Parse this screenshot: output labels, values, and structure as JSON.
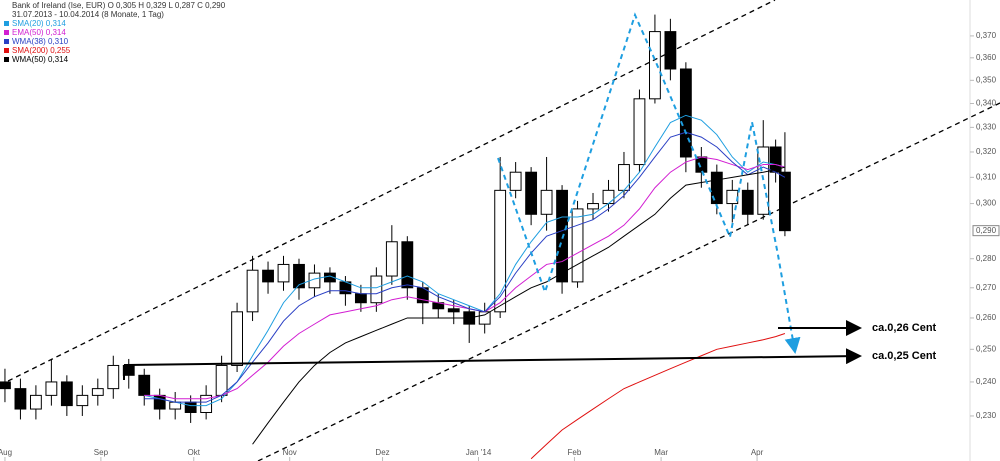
{
  "chart_data": {
    "type": "candlestick",
    "title": "Bank of Ireland (Ise, EUR) O 0,305 H 0,329 L 0,287 C 0,290",
    "subtitle": "31.07.2013 - 10.04.2014 (8 Monate, 1 Tag)",
    "x": [
      1,
      6,
      11,
      16,
      21,
      26,
      31,
      36,
      41,
      46,
      51,
      56,
      61,
      66,
      71,
      76,
      81,
      86,
      91,
      96,
      101,
      106,
      111,
      116,
      121,
      126,
      131,
      136,
      141,
      146,
      151,
      156,
      161,
      166,
      171,
      176,
      181,
      186,
      191,
      196,
      201,
      206,
      211,
      216,
      221,
      226,
      231,
      236,
      241,
      246,
      250,
      253
    ],
    "open": [
      0.24,
      0.238,
      0.232,
      0.236,
      0.24,
      0.233,
      0.236,
      0.238,
      0.245,
      0.242,
      0.236,
      0.232,
      0.234,
      0.231,
      0.236,
      0.245,
      0.262,
      0.276,
      0.272,
      0.278,
      0.27,
      0.275,
      0.272,
      0.268,
      0.265,
      0.274,
      0.286,
      0.27,
      0.265,
      0.263,
      0.262,
      0.258,
      0.262,
      0.305,
      0.312,
      0.296,
      0.305,
      0.272,
      0.298,
      0.3,
      0.305,
      0.315,
      0.342,
      0.372,
      0.355,
      0.318,
      0.312,
      0.3,
      0.305,
      0.296,
      0.322,
      0.312
    ],
    "high": [
      0.244,
      0.241,
      0.239,
      0.247,
      0.242,
      0.239,
      0.241,
      0.248,
      0.247,
      0.244,
      0.238,
      0.237,
      0.236,
      0.239,
      0.248,
      0.265,
      0.281,
      0.279,
      0.281,
      0.28,
      0.278,
      0.277,
      0.274,
      0.271,
      0.277,
      0.292,
      0.288,
      0.272,
      0.268,
      0.266,
      0.264,
      0.265,
      0.318,
      0.316,
      0.314,
      0.318,
      0.307,
      0.301,
      0.304,
      0.309,
      0.32,
      0.346,
      0.38,
      0.378,
      0.358,
      0.322,
      0.315,
      0.309,
      0.308,
      0.333,
      0.325,
      0.328
    ],
    "low": [
      0.234,
      0.229,
      0.229,
      0.233,
      0.23,
      0.23,
      0.233,
      0.235,
      0.238,
      0.233,
      0.229,
      0.229,
      0.228,
      0.229,
      0.234,
      0.243,
      0.259,
      0.268,
      0.269,
      0.266,
      0.267,
      0.268,
      0.264,
      0.262,
      0.262,
      0.271,
      0.266,
      0.258,
      0.26,
      0.258,
      0.252,
      0.255,
      0.26,
      0.302,
      0.292,
      0.29,
      0.268,
      0.27,
      0.294,
      0.297,
      0.302,
      0.312,
      0.34,
      0.35,
      0.312,
      0.306,
      0.296,
      0.293,
      0.292,
      0.294,
      0.308,
      0.288
    ],
    "close": [
      0.238,
      0.232,
      0.236,
      0.24,
      0.233,
      0.236,
      0.238,
      0.245,
      0.242,
      0.236,
      0.232,
      0.234,
      0.231,
      0.236,
      0.245,
      0.262,
      0.276,
      0.272,
      0.278,
      0.27,
      0.275,
      0.272,
      0.268,
      0.265,
      0.274,
      0.286,
      0.27,
      0.265,
      0.263,
      0.262,
      0.258,
      0.262,
      0.305,
      0.312,
      0.296,
      0.305,
      0.272,
      0.298,
      0.3,
      0.305,
      0.315,
      0.342,
      0.372,
      0.355,
      0.318,
      0.312,
      0.3,
      0.305,
      0.296,
      0.322,
      0.312,
      0.29
    ],
    "series": [
      {
        "name": "SMA(20) 0,314",
        "color": "#1e9ee0",
        "values": [
          null,
          null,
          null,
          null,
          null,
          null,
          null,
          null,
          null,
          0.236,
          0.235,
          0.234,
          0.233,
          0.233,
          0.235,
          0.24,
          0.248,
          0.256,
          0.265,
          0.271,
          0.273,
          0.274,
          0.272,
          0.27,
          0.27,
          0.272,
          0.274,
          0.272,
          0.268,
          0.266,
          0.264,
          0.262,
          0.268,
          0.278,
          0.286,
          0.293,
          0.295,
          0.295,
          0.296,
          0.3,
          0.305,
          0.312,
          0.322,
          0.332,
          0.335,
          0.333,
          0.327,
          0.318,
          0.312,
          0.316,
          0.315,
          0.314
        ]
      },
      {
        "name": "EMA(50) 0,314",
        "color": "#d21ed2",
        "values": [
          null,
          null,
          null,
          null,
          null,
          null,
          null,
          null,
          null,
          0.236,
          0.236,
          0.235,
          0.235,
          0.235,
          0.236,
          0.238,
          0.242,
          0.246,
          0.251,
          0.255,
          0.258,
          0.261,
          0.262,
          0.263,
          0.264,
          0.266,
          0.267,
          0.266,
          0.265,
          0.264,
          0.263,
          0.262,
          0.265,
          0.27,
          0.274,
          0.278,
          0.279,
          0.282,
          0.285,
          0.288,
          0.292,
          0.298,
          0.306,
          0.312,
          0.316,
          0.318,
          0.317,
          0.315,
          0.313,
          0.315,
          0.315,
          0.314
        ]
      },
      {
        "name": "WMA(38) 0,310",
        "color": "#2a3fc4",
        "values": [
          null,
          null,
          null,
          null,
          null,
          null,
          null,
          null,
          null,
          0.235,
          0.235,
          0.234,
          0.234,
          0.234,
          0.236,
          0.24,
          0.246,
          0.252,
          0.259,
          0.264,
          0.267,
          0.269,
          0.269,
          0.268,
          0.268,
          0.27,
          0.271,
          0.27,
          0.267,
          0.265,
          0.263,
          0.262,
          0.267,
          0.275,
          0.282,
          0.288,
          0.29,
          0.292,
          0.294,
          0.298,
          0.303,
          0.31,
          0.318,
          0.326,
          0.328,
          0.326,
          0.322,
          0.316,
          0.311,
          0.314,
          0.312,
          0.31
        ]
      },
      {
        "name": "SMA(200) 0,255",
        "color": "#e01010",
        "values": [
          null,
          null,
          null,
          null,
          null,
          null,
          null,
          null,
          null,
          null,
          null,
          null,
          null,
          null,
          null,
          null,
          null,
          null,
          null,
          null,
          null,
          null,
          null,
          null,
          null,
          null,
          null,
          null,
          null,
          null,
          null,
          null,
          null,
          null,
          0.218,
          0.222,
          0.226,
          0.229,
          0.232,
          0.235,
          0.238,
          0.24,
          0.242,
          0.244,
          0.246,
          0.248,
          0.25,
          0.251,
          0.252,
          0.253,
          0.254,
          0.255
        ]
      },
      {
        "name": "WMA(50) 0,314",
        "color": "#000000",
        "values": [
          null,
          null,
          null,
          null,
          null,
          null,
          null,
          null,
          null,
          null,
          null,
          null,
          null,
          null,
          null,
          null,
          0.222,
          0.228,
          0.234,
          0.24,
          0.245,
          0.249,
          0.252,
          0.254,
          0.256,
          0.258,
          0.26,
          0.26,
          0.26,
          0.26,
          0.26,
          0.261,
          0.264,
          0.267,
          0.27,
          0.272,
          0.275,
          0.278,
          0.281,
          0.284,
          0.288,
          0.292,
          0.296,
          0.302,
          0.307,
          0.308,
          0.309,
          0.31,
          0.311,
          0.312,
          0.313,
          0.314
        ]
      }
    ],
    "xlim": [
      -0.6,
      312.8
    ],
    "xticks": [
      {
        "value": 1,
        "label": "Aug"
      },
      {
        "value": 32,
        "label": "Sep"
      },
      {
        "value": 62,
        "label": "Okt"
      },
      {
        "value": 93,
        "label": "Nov"
      },
      {
        "value": 123,
        "label": "Dez"
      },
      {
        "value": 154,
        "label": "Jan '14"
      },
      {
        "value": 185,
        "label": "Feb"
      },
      {
        "value": 213,
        "label": "Mar"
      },
      {
        "value": 244,
        "label": "Apr"
      }
    ],
    "ylim": [
      0.2174,
      0.387
    ],
    "log_scale": true,
    "yticks": [
      {
        "value": 0.23,
        "label": "0,230"
      },
      {
        "value": 0.24,
        "label": "0,240"
      },
      {
        "value": 0.25,
        "label": "0,250"
      },
      {
        "value": 0.26,
        "label": "0,260"
      },
      {
        "value": 0.27,
        "label": "0,270"
      },
      {
        "value": 0.28,
        "label": "0,280"
      },
      {
        "value": 0.3,
        "label": "0,300"
      },
      {
        "value": 0.31,
        "label": "0,310"
      },
      {
        "value": 0.32,
        "label": "0,320"
      },
      {
        "value": 0.33,
        "label": "0,330"
      },
      {
        "value": 0.34,
        "label": "0,340"
      },
      {
        "value": 0.35,
        "label": "0,350"
      },
      {
        "value": 0.36,
        "label": "0,360"
      },
      {
        "value": 0.37,
        "label": "0,370"
      }
    ],
    "price_marker": {
      "value": 0.29,
      "label": "0,290"
    },
    "annotations": [
      "ca.0,26 Cent",
      "ca.0,25 Cent"
    ]
  }
}
